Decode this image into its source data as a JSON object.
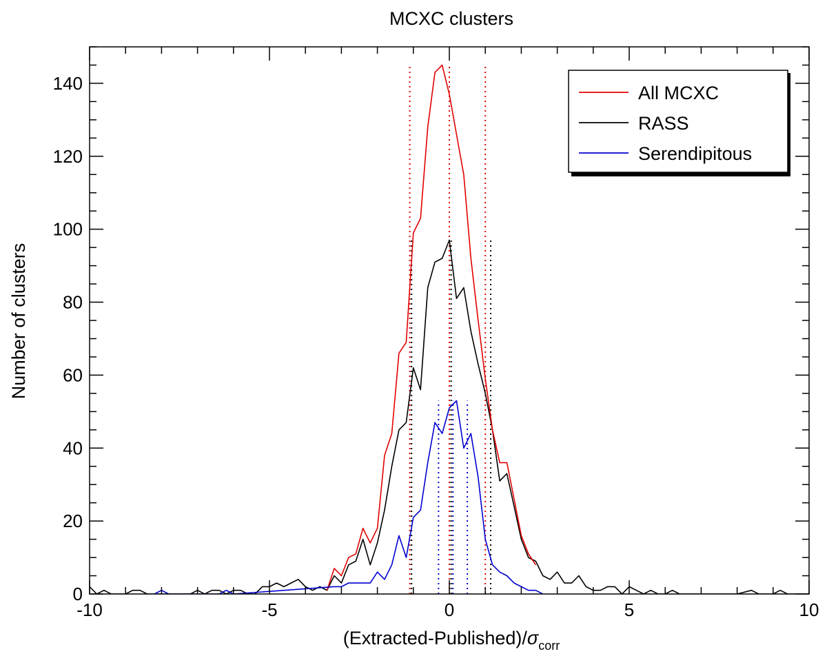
{
  "chart_data": {
    "type": "line",
    "title": "MCXC clusters",
    "xlabel": "(Extracted-Published)/",
    "xlabel_symbol": "σ",
    "xlabel_subscript": "corr",
    "ylabel": "Number of clusters",
    "xlim": [
      -10,
      10
    ],
    "ylim": [
      0,
      150
    ],
    "xticks": [
      -10,
      -5,
      0,
      5,
      10
    ],
    "xtick_labels": [
      "-10",
      "-5",
      "0",
      "5",
      "10"
    ],
    "yticks": [
      0,
      20,
      40,
      60,
      80,
      100,
      120,
      140
    ],
    "ytick_labels": [
      "0",
      "20",
      "40",
      "60",
      "80",
      "100",
      "120",
      "140"
    ],
    "grid": false,
    "legend_position": "top-right",
    "series": [
      {
        "name": "All MCXC",
        "color": "#e00000",
        "points": [
          [
            -3.4,
            1
          ],
          [
            -3.2,
            7
          ],
          [
            -3.0,
            5
          ],
          [
            -2.8,
            10
          ],
          [
            -2.6,
            11
          ],
          [
            -2.4,
            18
          ],
          [
            -2.2,
            14
          ],
          [
            -2.0,
            18
          ],
          [
            -1.8,
            38
          ],
          [
            -1.6,
            44
          ],
          [
            -1.4,
            66
          ],
          [
            -1.2,
            69
          ],
          [
            -1.0,
            99
          ],
          [
            -0.8,
            103
          ],
          [
            -0.6,
            128
          ],
          [
            -0.4,
            143
          ],
          [
            -0.2,
            145
          ],
          [
            0.0,
            137
          ],
          [
            0.2,
            126
          ],
          [
            0.4,
            115
          ],
          [
            0.6,
            92
          ],
          [
            0.8,
            75
          ],
          [
            1.0,
            59
          ],
          [
            1.2,
            45
          ],
          [
            1.4,
            36
          ],
          [
            1.6,
            36
          ],
          [
            1.8,
            26
          ],
          [
            2.0,
            16
          ],
          [
            2.2,
            11
          ],
          [
            2.4,
            8
          ]
        ]
      },
      {
        "name": "RASS",
        "color": "#000000",
        "points": [
          [
            -10.0,
            2
          ],
          [
            -9.8,
            0
          ],
          [
            -9.6,
            1
          ],
          [
            -9.4,
            0
          ],
          [
            -9.0,
            0
          ],
          [
            -8.8,
            1
          ],
          [
            -8.6,
            1
          ],
          [
            -8.4,
            0
          ],
          [
            -8.0,
            0
          ],
          [
            -7.6,
            0
          ],
          [
            -7.2,
            0
          ],
          [
            -7.0,
            1
          ],
          [
            -6.8,
            0
          ],
          [
            -6.6,
            1
          ],
          [
            -6.4,
            1
          ],
          [
            -6.2,
            0
          ],
          [
            -6.0,
            1
          ],
          [
            -5.8,
            1
          ],
          [
            -5.6,
            0
          ],
          [
            -5.4,
            0
          ],
          [
            -5.2,
            2
          ],
          [
            -5.0,
            2
          ],
          [
            -4.8,
            3
          ],
          [
            -4.6,
            2
          ],
          [
            -4.4,
            3
          ],
          [
            -4.2,
            4
          ],
          [
            -4.0,
            2
          ],
          [
            -3.8,
            1
          ],
          [
            -3.6,
            2
          ],
          [
            -3.4,
            1
          ],
          [
            -3.2,
            5
          ],
          [
            -3.0,
            3
          ],
          [
            -2.8,
            8
          ],
          [
            -2.6,
            9
          ],
          [
            -2.4,
            15
          ],
          [
            -2.2,
            8
          ],
          [
            -2.0,
            14
          ],
          [
            -1.8,
            23
          ],
          [
            -1.6,
            35
          ],
          [
            -1.4,
            45
          ],
          [
            -1.2,
            47
          ],
          [
            -1.0,
            62
          ],
          [
            -0.8,
            56
          ],
          [
            -0.6,
            84
          ],
          [
            -0.4,
            91
          ],
          [
            -0.2,
            92
          ],
          [
            0.0,
            97
          ],
          [
            0.2,
            81
          ],
          [
            0.4,
            84
          ],
          [
            0.6,
            72
          ],
          [
            0.8,
            63
          ],
          [
            1.0,
            55
          ],
          [
            1.2,
            45
          ],
          [
            1.4,
            31
          ],
          [
            1.6,
            33
          ],
          [
            1.8,
            24
          ],
          [
            2.0,
            15
          ],
          [
            2.2,
            10
          ],
          [
            2.4,
            9
          ],
          [
            2.6,
            5
          ],
          [
            2.8,
            4
          ],
          [
            3.0,
            6
          ],
          [
            3.2,
            3
          ],
          [
            3.4,
            3
          ],
          [
            3.6,
            5
          ],
          [
            3.8,
            2
          ],
          [
            4.0,
            1
          ],
          [
            4.2,
            1
          ],
          [
            4.4,
            2
          ],
          [
            4.6,
            2
          ],
          [
            4.8,
            0
          ],
          [
            5.0,
            2
          ],
          [
            5.2,
            1
          ],
          [
            5.4,
            0
          ],
          [
            5.6,
            1
          ],
          [
            5.8,
            0
          ],
          [
            6.0,
            0
          ],
          [
            6.2,
            1
          ],
          [
            6.4,
            0
          ],
          [
            8.0,
            0
          ],
          [
            8.4,
            1
          ],
          [
            8.6,
            0
          ],
          [
            9.0,
            0
          ],
          [
            9.2,
            1
          ],
          [
            9.4,
            0
          ],
          [
            10.0,
            0
          ]
        ]
      },
      {
        "name": "Serendipitous",
        "color": "#0000d0",
        "points": [
          [
            -8.2,
            0
          ],
          [
            -8.0,
            1
          ],
          [
            -7.8,
            0
          ],
          [
            -6.4,
            0
          ],
          [
            -6.2,
            1
          ],
          [
            -6.0,
            0
          ],
          [
            -3.2,
            2
          ],
          [
            -3.0,
            2
          ],
          [
            -2.8,
            3
          ],
          [
            -2.6,
            3
          ],
          [
            -2.4,
            3
          ],
          [
            -2.2,
            3
          ],
          [
            -2.0,
            6
          ],
          [
            -1.8,
            4
          ],
          [
            -1.6,
            8
          ],
          [
            -1.4,
            16
          ],
          [
            -1.2,
            10
          ],
          [
            -1.0,
            21
          ],
          [
            -0.8,
            23
          ],
          [
            -0.6,
            36
          ],
          [
            -0.4,
            47
          ],
          [
            -0.2,
            44
          ],
          [
            0.0,
            51
          ],
          [
            0.2,
            53
          ],
          [
            0.4,
            40
          ],
          [
            0.6,
            44
          ],
          [
            0.8,
            32
          ],
          [
            1.0,
            15
          ],
          [
            1.2,
            8
          ],
          [
            1.4,
            6
          ],
          [
            1.6,
            5
          ],
          [
            1.8,
            3
          ],
          [
            2.0,
            2
          ],
          [
            2.2,
            1
          ],
          [
            2.4,
            1
          ],
          [
            2.6,
            0
          ]
        ]
      }
    ],
    "reference_lines": [
      {
        "color": "#e00000",
        "x": [
          -1.1,
          0.0,
          1.0
        ],
        "ymax": 145
      },
      {
        "color": "#000000",
        "x": [
          -1.05,
          0.05,
          1.15
        ],
        "ymax": 97
      },
      {
        "color": "#0000d0",
        "x": [
          -0.3,
          0.1,
          0.5
        ],
        "ymax": 53
      }
    ]
  }
}
